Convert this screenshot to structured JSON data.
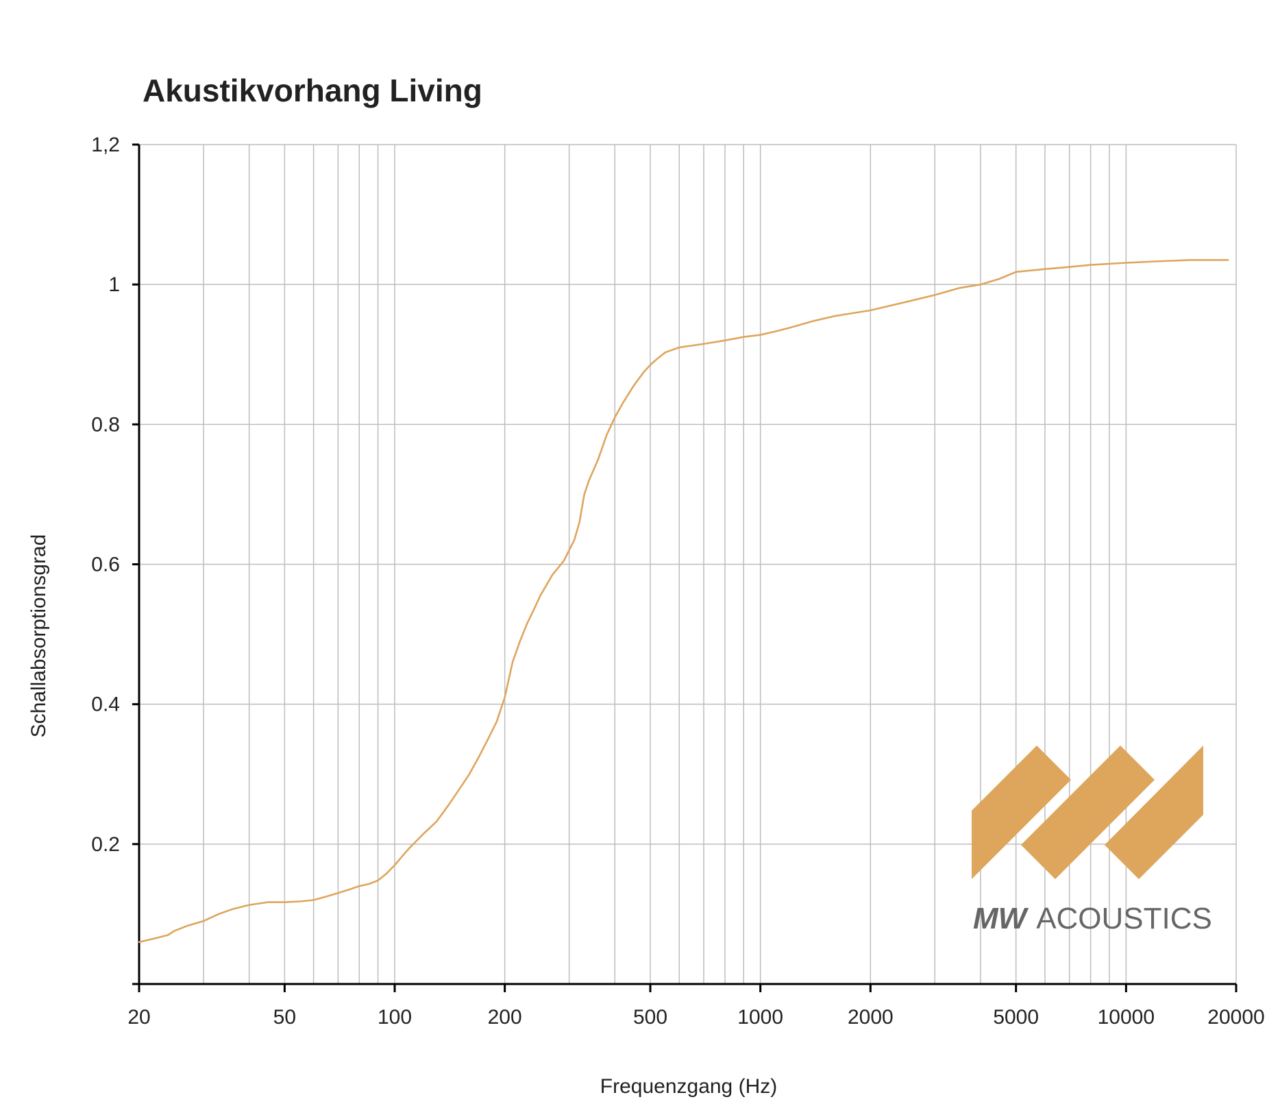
{
  "chart_data": {
    "type": "line",
    "title": "Akustikvorhang Living",
    "xlabel": "Frequenzgang (Hz)",
    "ylabel": "Schallabsorptionsgrad",
    "x_scale": "log",
    "xlim": [
      20,
      20000
    ],
    "ylim": [
      0,
      1.2
    ],
    "grid": true,
    "x_ticks": [
      20,
      50,
      100,
      200,
      500,
      1000,
      2000,
      5000,
      10000,
      20000
    ],
    "x_tick_labels": [
      "20",
      "50",
      "100",
      "200",
      "500",
      "1000",
      "2000",
      "5000",
      "10000",
      "20000"
    ],
    "y_ticks": [
      0.2,
      0.4,
      0.6,
      0.8,
      1.0,
      1.2
    ],
    "y_tick_labels": [
      "0.2",
      "0.4",
      "0.6",
      "0.8",
      "1",
      "1,2"
    ],
    "series": [
      {
        "color": "#dea55c",
        "x": [
          20,
          22,
          24,
          25,
          27,
          30,
          33,
          36,
          40,
          45,
          50,
          55,
          60,
          65,
          70,
          75,
          80,
          85,
          90,
          95,
          100,
          105,
          110,
          120,
          130,
          140,
          150,
          160,
          170,
          180,
          190,
          200,
          210,
          220,
          230,
          240,
          250,
          270,
          290,
          310,
          320,
          330,
          340,
          360,
          380,
          400,
          420,
          450,
          480,
          500,
          520,
          550,
          600,
          700,
          800,
          900,
          1000,
          1100,
          1200,
          1400,
          1600,
          2000,
          2500,
          3000,
          3500,
          4000,
          4500,
          5000,
          6000,
          7000,
          8000,
          10000,
          12000,
          15000,
          19000
        ],
        "y": [
          0.06,
          0.065,
          0.07,
          0.076,
          0.083,
          0.09,
          0.1,
          0.107,
          0.113,
          0.117,
          0.117,
          0.118,
          0.12,
          0.125,
          0.13,
          0.135,
          0.14,
          0.143,
          0.148,
          0.158,
          0.17,
          0.183,
          0.195,
          0.215,
          0.232,
          0.255,
          0.278,
          0.3,
          0.325,
          0.35,
          0.375,
          0.41,
          0.46,
          0.49,
          0.515,
          0.535,
          0.555,
          0.585,
          0.605,
          0.635,
          0.66,
          0.7,
          0.72,
          0.75,
          0.785,
          0.81,
          0.83,
          0.855,
          0.875,
          0.885,
          0.893,
          0.903,
          0.91,
          0.915,
          0.92,
          0.925,
          0.928,
          0.933,
          0.938,
          0.948,
          0.955,
          0.963,
          0.975,
          0.985,
          0.995,
          1.0,
          1.008,
          1.018,
          1.022,
          1.025,
          1.028,
          1.031,
          1.033,
          1.035,
          1.035
        ]
      }
    ]
  },
  "logo": {
    "brand_bold": "MW",
    "brand_rest": "ACOUSTICS",
    "color_shapes": "#dea55c",
    "color_text": "#666666"
  }
}
